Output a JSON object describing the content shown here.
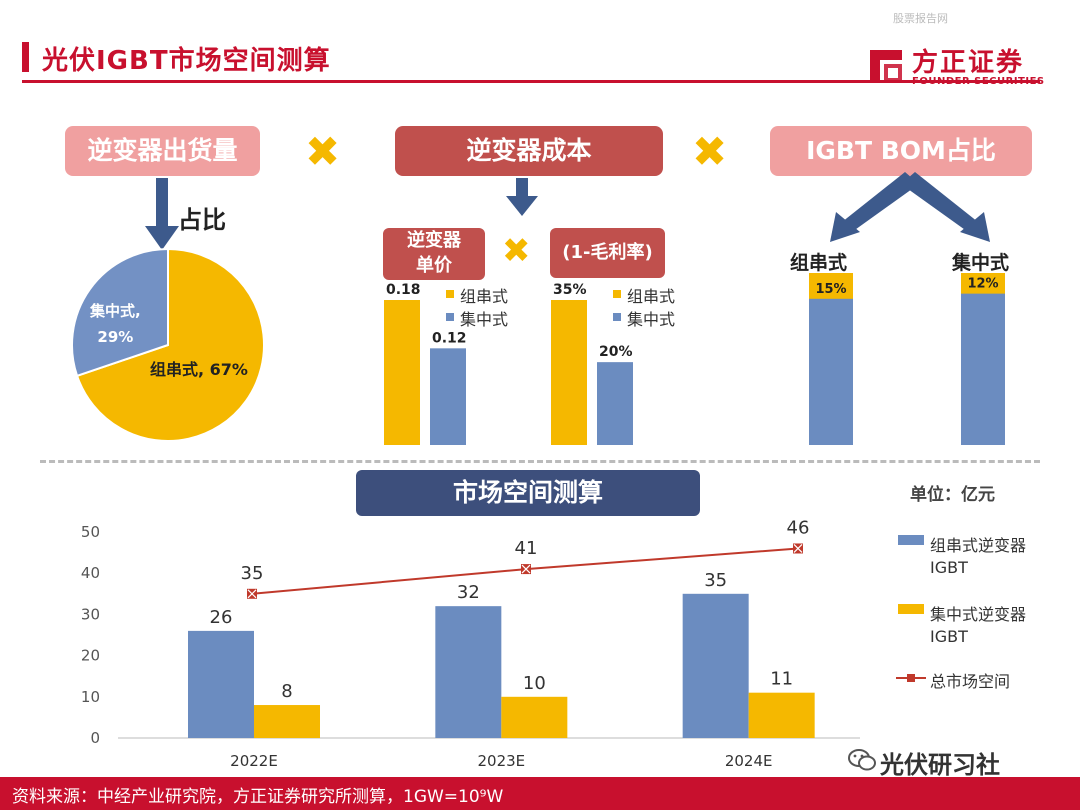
{
  "header": {
    "title": "光伏IGBT市场空间测算",
    "watermark": "股票报告网",
    "logo_cn": "方正证券",
    "logo_en": "FOUNDER SECURITIES"
  },
  "flow": {
    "box1": "逆变器出货量",
    "box2": "逆变器成本",
    "box3": "IGBT BOM占比",
    "times_symbol": "✖",
    "share_label": "占比",
    "sub_price": "逆变器\n单价",
    "sub_margin": "(1-毛利率)",
    "string_label": "组串式",
    "central_label": "集中式"
  },
  "colors": {
    "gold": "#f5b800",
    "blue": "#6b8cc0",
    "red": "#c8102e",
    "line_red": "#c0392b",
    "pie_blue": "#7391c4"
  },
  "chart_data": [
    {
      "type": "pie",
      "title": "逆变器出货量占比",
      "slices": [
        {
          "name": "组串式",
          "value": 67,
          "label": "组串式, 67%"
        },
        {
          "name": "集中式",
          "value": 29,
          "label": "集中式,\n29%"
        }
      ]
    },
    {
      "type": "bar",
      "title": "逆变器单价",
      "categories": [
        "组串式",
        "集中式"
      ],
      "values": [
        0.18,
        0.12
      ],
      "labels": [
        "0.18",
        "0.12"
      ],
      "legend": [
        "组串式",
        "集中式"
      ]
    },
    {
      "type": "bar",
      "title": "(1-毛利率)",
      "categories": [
        "组串式",
        "集中式"
      ],
      "values": [
        35,
        20
      ],
      "labels": [
        "35%",
        "20%"
      ],
      "legend": [
        "组串式",
        "集中式"
      ]
    },
    {
      "type": "bar",
      "title": "IGBT BOM占比",
      "categories": [
        "组串式",
        "集中式"
      ],
      "values": [
        15,
        12
      ],
      "labels": [
        "15%",
        "12%"
      ]
    },
    {
      "type": "bar",
      "title": "市场空间测算",
      "unit": "单位：亿元",
      "categories": [
        "2022E",
        "2023E",
        "2024E"
      ],
      "ylim": [
        0,
        50
      ],
      "yticks": [
        0,
        10,
        20,
        30,
        40,
        50
      ],
      "series": [
        {
          "name": "组串式逆变器IGBT",
          "legend": [
            "组串式逆变器",
            "IGBT"
          ],
          "kind": "bar",
          "values": [
            26,
            32,
            35
          ]
        },
        {
          "name": "集中式逆变器IGBT",
          "legend": [
            "集中式逆变器",
            "IGBT"
          ],
          "kind": "bar",
          "values": [
            8,
            10,
            11
          ]
        },
        {
          "name": "总市场空间",
          "legend": [
            "总市场空间"
          ],
          "kind": "line",
          "values": [
            35,
            41,
            46
          ]
        }
      ]
    }
  ],
  "footer": {
    "source": "资料来源：中经产业研究院，方正证券研究所测算，1GW=10⁹W",
    "wechat": "光伏研习社"
  }
}
